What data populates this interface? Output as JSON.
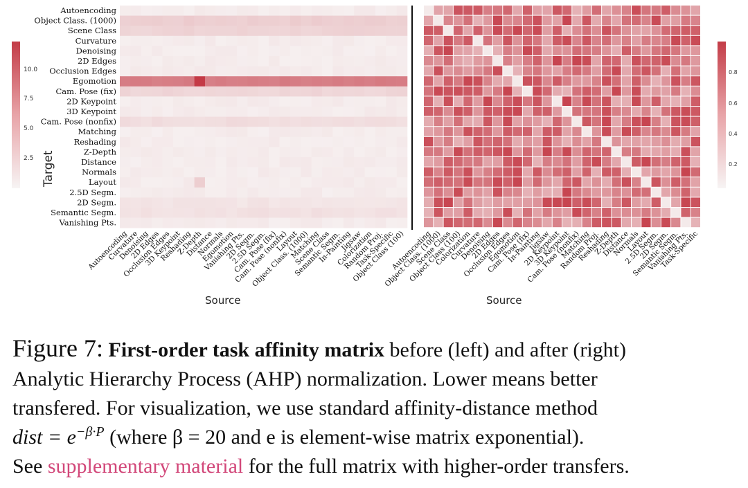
{
  "rows": [
    "Autoencoding",
    "Object Class. (1000)",
    "Scene Class",
    "Curvature",
    "Denoising",
    "2D Edges",
    "Occlusion Edges",
    "Egomotion",
    "Cam. Pose (fix)",
    "2D Keypoint",
    "3D Keypoint",
    "Cam. Pose (nonfix)",
    "Matching",
    "Reshading",
    "Z-Depth",
    "Distance",
    "Normals",
    "Layout",
    "2.5D Segm.",
    "2D Segm.",
    "Semantic Segm.",
    "Vanishing Pts."
  ],
  "left_cols": [
    "Autoencoding",
    "Curvature",
    "Denoising",
    "2D Edges",
    "Occlusion Edges",
    "3D Keypoint",
    "Reshading",
    "Z-Depth",
    "Distance",
    "Normals",
    "Egomotion",
    "Vanishing Pts.",
    "2D Segm.",
    "2.5D Segm.",
    "Cam. Pose (fix)",
    "Cam. Pose (nonfix)",
    "Layout",
    "Object Class. (1000)",
    "Matching",
    "Scene Class",
    "Semantic Segm.",
    "In-Painting",
    "Jigsaw",
    "Colorization",
    "Random Proj.",
    "Task-Specific",
    "Object Class (100)"
  ],
  "right_cols": [
    "Autoencoding",
    "Object Class. (1000)",
    "Scene Class",
    "Object Class (100)",
    "Colorization",
    "Curvature",
    "Denoising",
    "2D Edges",
    "Occlusion Edges",
    "Egomotion",
    "Cam. Pose (fix)",
    "In-Painting",
    "Jigsaw",
    "2D Keypoint",
    "3D Keypoint",
    "Cam. Pose (nonfix)",
    "Matching",
    "Random Proj.",
    "Reshading",
    "Z-Depth",
    "Distance",
    "Normals",
    "Layout",
    "2.5D Segm.",
    "2D Segm.",
    "Semantic Segm.",
    "Vanishing Pts.",
    "Task-Specific"
  ],
  "left_heatmap": {
    "colorbar_ticks": [
      "10.0",
      "7.5",
      "5.0",
      "2.5"
    ],
    "ylabel": "Target",
    "xlabel": "Source",
    "hot_cells": [
      {
        "row": "Egomotion",
        "col": "Z-Depth"
      }
    ]
  },
  "right_heatmap": {
    "colorbar_ticks": [
      "0.8",
      "0.6",
      "0.4",
      "0.2"
    ],
    "xlabel": "Source"
  },
  "colors": {
    "high": "#c8414b",
    "low": "#f6f4f4"
  },
  "caption": {
    "figure_label": "Figure 7:",
    "bold": "First-order task affinity matrix",
    "line1_rest": " before (left) and after (right)",
    "line2": "Analytic Hierarchy Process (AHP) normalization.  Lower means better",
    "line3": "transfered.  For visualization, we use standard affinity-distance method",
    "math_lhs": "dist",
    "math_eq": " = e",
    "math_exp": "−β·P",
    "line4_rest": " (where β = 20 and e is element-wise matrix exponential).",
    "line5_a": "See ",
    "link": "supplementary material",
    "line5_b": " for the full matrix with higher-order transfers."
  }
}
